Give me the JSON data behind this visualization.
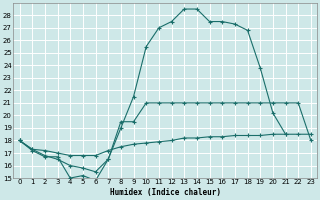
{
  "xlabel": "Humidex (Indice chaleur)",
  "xlim": [
    -0.5,
    23.5
  ],
  "ylim": [
    15,
    29
  ],
  "yticks": [
    15,
    16,
    17,
    18,
    19,
    20,
    21,
    22,
    23,
    24,
    25,
    26,
    27,
    28
  ],
  "xticks": [
    0,
    1,
    2,
    3,
    4,
    5,
    6,
    7,
    8,
    9,
    10,
    11,
    12,
    13,
    14,
    15,
    16,
    17,
    18,
    19,
    20,
    21,
    22,
    23
  ],
  "bg_color": "#cee8e8",
  "line_color": "#1a6e6a",
  "grid_color": "#b8d8d8",
  "curve1_x": [
    0,
    1,
    2,
    3,
    4,
    5,
    6,
    7,
    8,
    9,
    10,
    11,
    12,
    13,
    14,
    15,
    16,
    17,
    18,
    19,
    20,
    21,
    22,
    23
  ],
  "curve1_y": [
    18.0,
    17.2,
    16.7,
    16.7,
    15.0,
    15.2,
    14.8,
    16.5,
    19.5,
    19.5,
    21.0,
    21.0,
    21.0,
    21.0,
    21.0,
    21.0,
    21.0,
    21.0,
    21.0,
    21.0,
    21.0,
    21.0,
    21.0,
    18.0
  ],
  "curve2_x": [
    0,
    1,
    2,
    3,
    4,
    5,
    6,
    7,
    8,
    9,
    10,
    11,
    12,
    13,
    14,
    15,
    16,
    17,
    18,
    19,
    20,
    21,
    22,
    23
  ],
  "curve2_y": [
    18.0,
    17.3,
    16.8,
    16.5,
    16.0,
    15.8,
    15.5,
    16.5,
    19.0,
    21.5,
    25.5,
    27.0,
    27.5,
    28.5,
    28.5,
    27.5,
    27.5,
    27.3,
    26.8,
    23.8,
    20.2,
    18.5,
    null,
    null
  ],
  "curve3_x": [
    0,
    1,
    2,
    3,
    4,
    5,
    6,
    7,
    8,
    9,
    10,
    11,
    12,
    13,
    14,
    15,
    16,
    17,
    18,
    19,
    20,
    21,
    22,
    23
  ],
  "curve3_y": [
    18.0,
    17.3,
    17.2,
    17.0,
    16.8,
    16.8,
    16.8,
    17.2,
    17.5,
    17.7,
    17.8,
    17.9,
    18.0,
    18.2,
    18.2,
    18.3,
    18.3,
    18.4,
    18.4,
    18.4,
    18.5,
    18.5,
    18.5,
    18.5
  ]
}
